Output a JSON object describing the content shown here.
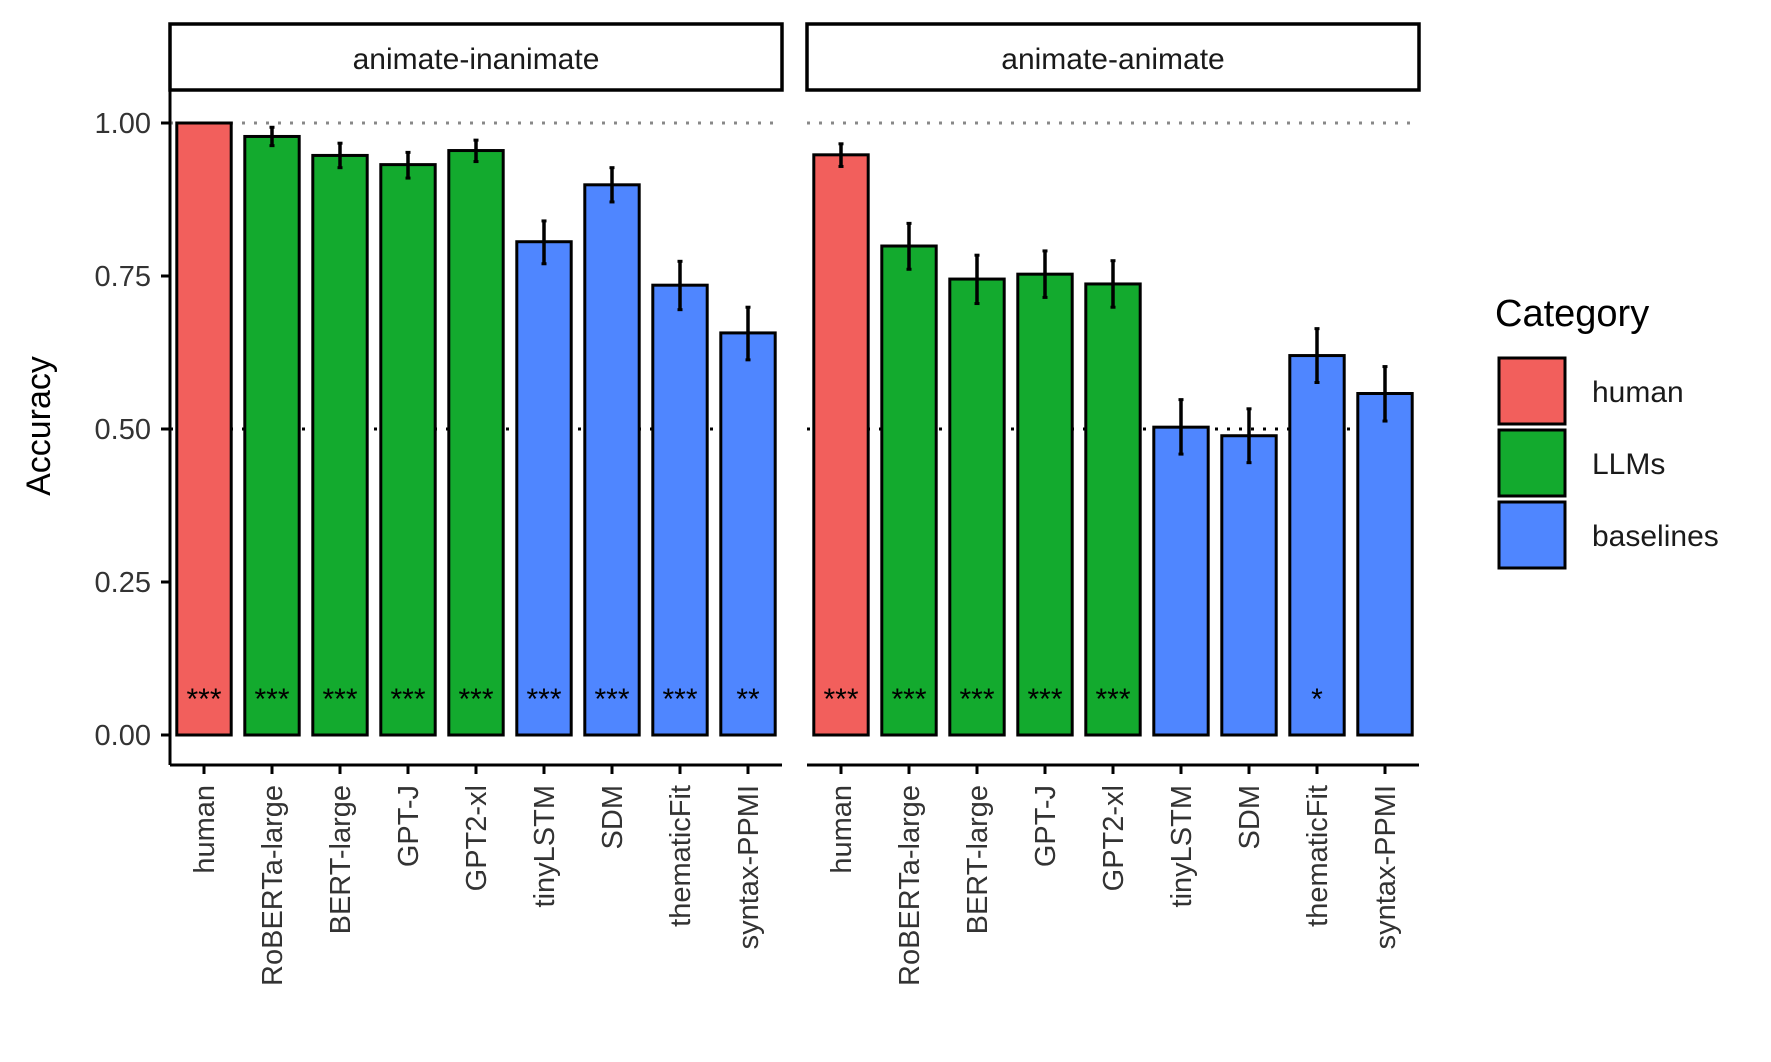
{
  "chart_data": {
    "type": "bar",
    "ylabel": "Accuracy",
    "ylim": [
      0,
      1.0
    ],
    "yticks": [
      "0.00",
      "0.25",
      "0.50",
      "0.75",
      "1.00"
    ],
    "ytick_values": [
      0,
      0.25,
      0.5,
      0.75,
      1.0
    ],
    "reference_lines": [
      1.0,
      0.5
    ],
    "legend": {
      "title": "Category",
      "placement": "right",
      "items": [
        {
          "key": "human",
          "label": "human",
          "color": "#F25F5C"
        },
        {
          "key": "LLMs",
          "label": "LLMs",
          "color": "#13AA2E"
        },
        {
          "key": "baselines",
          "label": "baselines",
          "color": "#4F86FF"
        }
      ]
    },
    "categories": [
      "human",
      "RoBERTa-large",
      "BERT-large",
      "GPT-J",
      "GPT2-xl",
      "tinyLSTM",
      "SDM",
      "thematicFit",
      "syntax-PPMI"
    ],
    "category_groups": [
      "human",
      "LLMs",
      "LLMs",
      "LLMs",
      "LLMs",
      "baselines",
      "baselines",
      "baselines",
      "baselines"
    ],
    "panels": [
      {
        "title": "animate-inanimate",
        "values": [
          1.0,
          0.978,
          0.947,
          0.932,
          0.955,
          0.806,
          0.899,
          0.735,
          0.657
        ],
        "error_low": [
          1.0,
          0.963,
          0.927,
          0.91,
          0.937,
          0.77,
          0.871,
          0.695,
          0.613
        ],
        "error_high": [
          1.0,
          0.993,
          0.967,
          0.952,
          0.972,
          0.84,
          0.927,
          0.774,
          0.699
        ],
        "significance": [
          "***",
          "***",
          "***",
          "***",
          "***",
          "***",
          "***",
          "***",
          "**"
        ]
      },
      {
        "title": "animate-animate",
        "values": [
          0.948,
          0.799,
          0.745,
          0.753,
          0.737,
          0.503,
          0.489,
          0.62,
          0.558
        ],
        "error_low": [
          0.929,
          0.761,
          0.705,
          0.715,
          0.699,
          0.459,
          0.445,
          0.576,
          0.513
        ],
        "error_high": [
          0.966,
          0.836,
          0.784,
          0.791,
          0.775,
          0.548,
          0.533,
          0.664,
          0.602
        ],
        "significance": [
          "***",
          "***",
          "***",
          "***",
          "***",
          "",
          "",
          "*",
          ""
        ]
      }
    ]
  }
}
